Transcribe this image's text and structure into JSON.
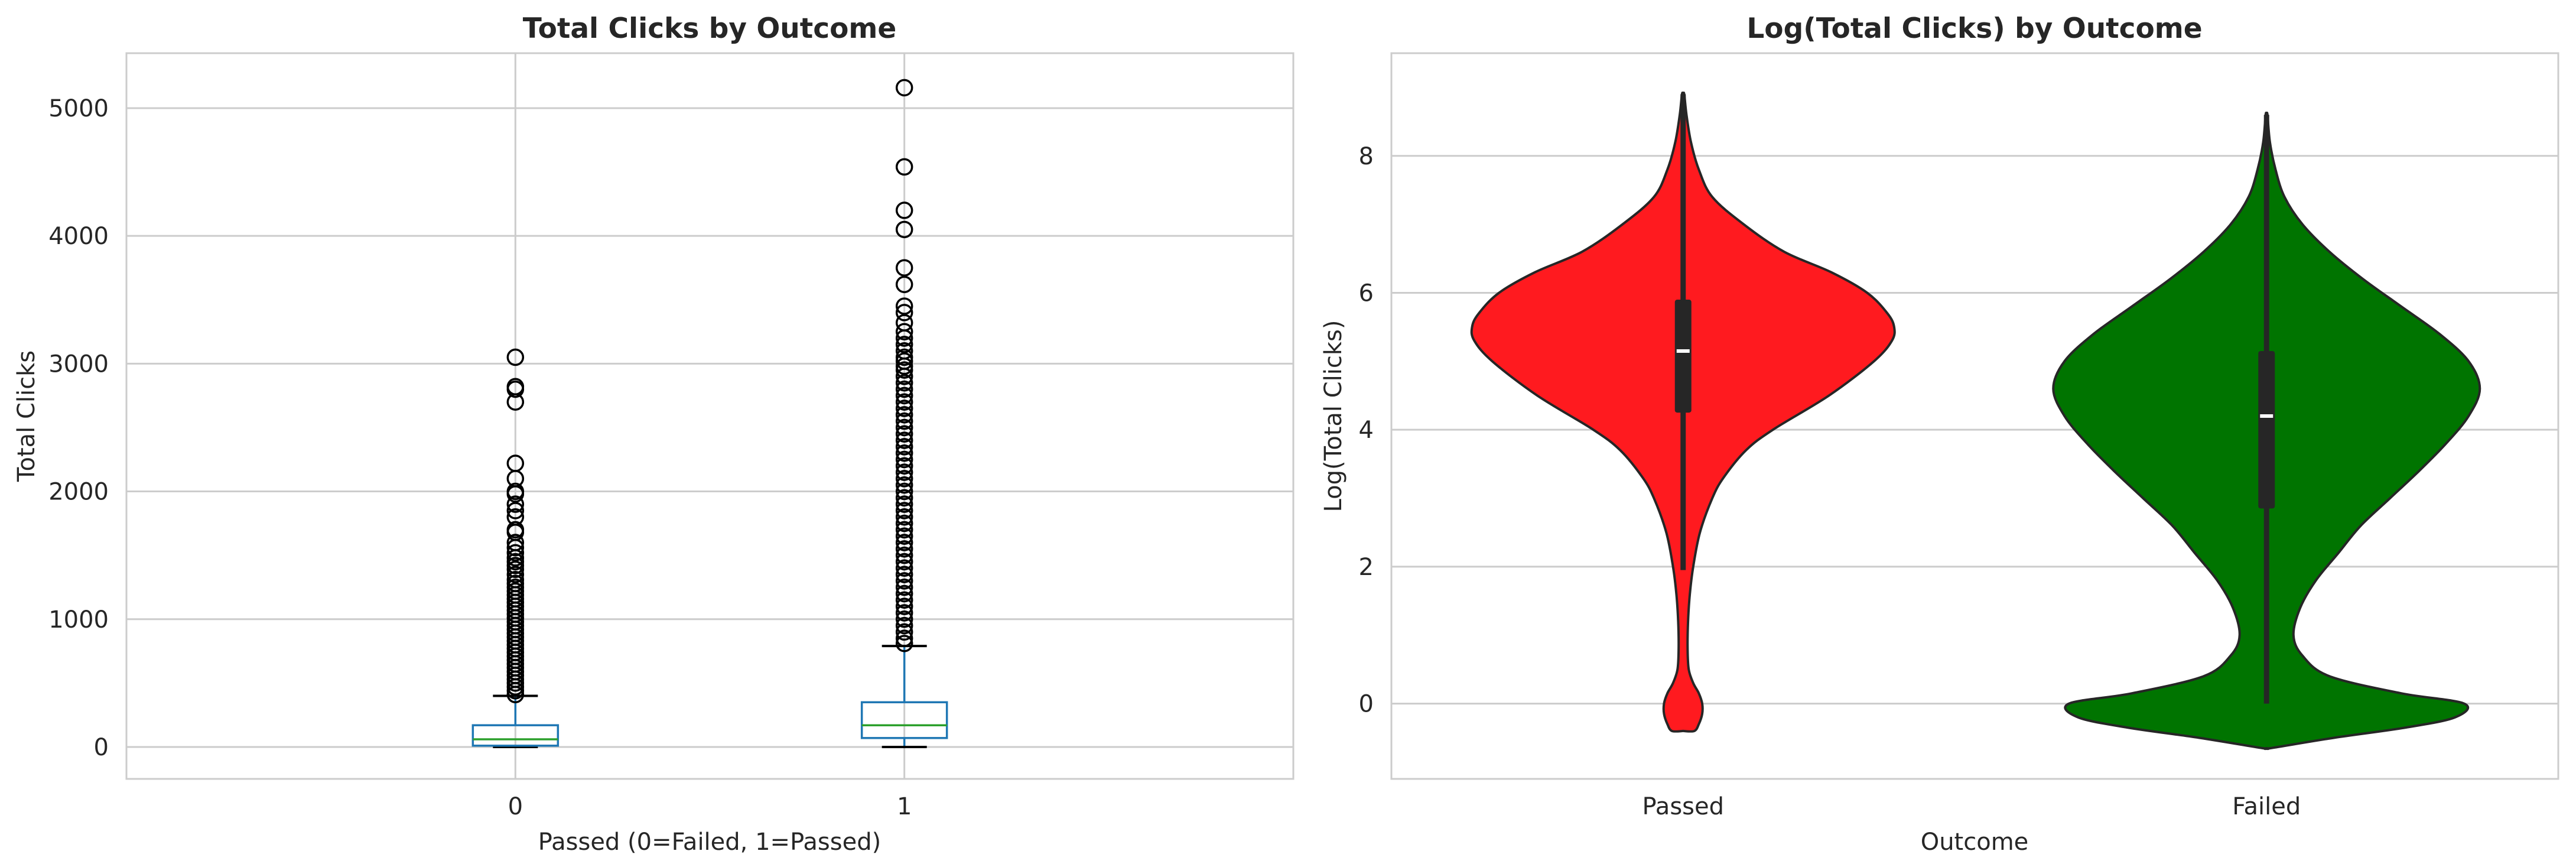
{
  "chart_data": [
    {
      "type": "box",
      "title": "Total Clicks by Outcome",
      "xlabel": "Passed (0=Failed, 1=Passed)",
      "ylabel": "Total Clicks",
      "ylim": [
        -250,
        5430
      ],
      "yticks": [
        0,
        1000,
        2000,
        3000,
        4000,
        5000
      ],
      "categories": [
        "0",
        "1"
      ],
      "grid": true,
      "colors": {
        "box": "#1f77b4",
        "median": "#2ca02c",
        "whisker": "#1f77b4",
        "cap": "#000000",
        "flier": "#000000"
      },
      "boxes": [
        {
          "category": "0",
          "q1": 10,
          "median": 60,
          "q3": 170,
          "whisker_low": 0,
          "whisker_high": 400,
          "fliers": [
            3050,
            2820,
            2800,
            2700,
            2220,
            2100,
            2000,
            1980,
            1900,
            1850,
            1800,
            1700,
            1680,
            1600,
            1560,
            1520,
            1480,
            1450,
            1420,
            1390,
            1350,
            1310,
            1280,
            1250,
            1220,
            1190,
            1160,
            1130,
            1100,
            1070,
            1040,
            1010,
            980,
            950,
            920,
            890,
            860,
            830,
            800,
            770,
            740,
            710,
            680,
            650,
            620,
            590,
            560,
            530,
            500,
            470,
            440,
            410
          ]
        },
        {
          "category": "1",
          "q1": 70,
          "median": 170,
          "q3": 350,
          "whisker_low": 0,
          "whisker_high": 790,
          "fliers": [
            5160,
            4540,
            4200,
            4050,
            3750,
            3620,
            3450,
            3400,
            3320,
            3250,
            3200,
            3150,
            3100,
            3050,
            3020,
            2980,
            2950,
            2900,
            2850,
            2800,
            2750,
            2700,
            2650,
            2600,
            2550,
            2500,
            2450,
            2400,
            2350,
            2300,
            2250,
            2200,
            2150,
            2100,
            2050,
            2000,
            1950,
            1900,
            1850,
            1800,
            1750,
            1700,
            1650,
            1600,
            1550,
            1500,
            1450,
            1400,
            1350,
            1300,
            1250,
            1200,
            1150,
            1100,
            1050,
            1000,
            950,
            900,
            850,
            810
          ]
        }
      ]
    },
    {
      "type": "violin",
      "title": "Log(Total Clicks) by Outcome",
      "xlabel": "Outcome",
      "ylabel": "Log(Total Clicks)",
      "ylim": [
        -1.1,
        9.5
      ],
      "yticks": [
        0,
        2,
        4,
        6,
        8
      ],
      "categories": [
        "Passed",
        "Failed"
      ],
      "grid": true,
      "violins": [
        {
          "category": "Passed",
          "color": "#ff1a1f",
          "median": 5.15,
          "q1": 4.25,
          "q3": 5.9,
          "whisker_low": 1.95,
          "whisker_high": 8.9,
          "density_y": [
            -0.4,
            -0.3,
            -0.15,
            0.0,
            0.15,
            0.3,
            0.5,
            0.8,
            1.2,
            1.6,
            2.0,
            2.5,
            3.0,
            3.3,
            3.7,
            4.0,
            4.5,
            5.0,
            5.3,
            5.5,
            5.7,
            6.0,
            6.3,
            6.6,
            7.0,
            7.4,
            7.8,
            8.2,
            8.6,
            8.9
          ],
          "density_w": [
            0.05,
            0.07,
            0.085,
            0.085,
            0.07,
            0.045,
            0.025,
            0.02,
            0.022,
            0.03,
            0.045,
            0.075,
            0.13,
            0.18,
            0.28,
            0.4,
            0.65,
            0.85,
            0.93,
            0.94,
            0.91,
            0.82,
            0.66,
            0.45,
            0.27,
            0.13,
            0.07,
            0.035,
            0.015,
            0.005
          ]
        },
        {
          "category": "Failed",
          "color": "#007400",
          "median": 4.2,
          "q1": 2.85,
          "q3": 5.15,
          "whisker_low": 0.0,
          "whisker_high": 8.6,
          "density_y": [
            -0.65,
            -0.5,
            -0.35,
            -0.2,
            0.0,
            0.15,
            0.4,
            0.7,
            1.0,
            1.4,
            1.8,
            2.2,
            2.6,
            3.0,
            3.4,
            3.8,
            4.2,
            4.6,
            5.0,
            5.4,
            5.8,
            6.2,
            6.6,
            7.0,
            7.4,
            7.8,
            8.2,
            8.6
          ],
          "density_w": [
            0.02,
            0.3,
            0.62,
            0.84,
            0.88,
            0.6,
            0.28,
            0.16,
            0.12,
            0.15,
            0.22,
            0.32,
            0.42,
            0.55,
            0.68,
            0.8,
            0.9,
            0.95,
            0.9,
            0.77,
            0.6,
            0.43,
            0.28,
            0.16,
            0.08,
            0.04,
            0.015,
            0.004
          ]
        }
      ]
    }
  ]
}
